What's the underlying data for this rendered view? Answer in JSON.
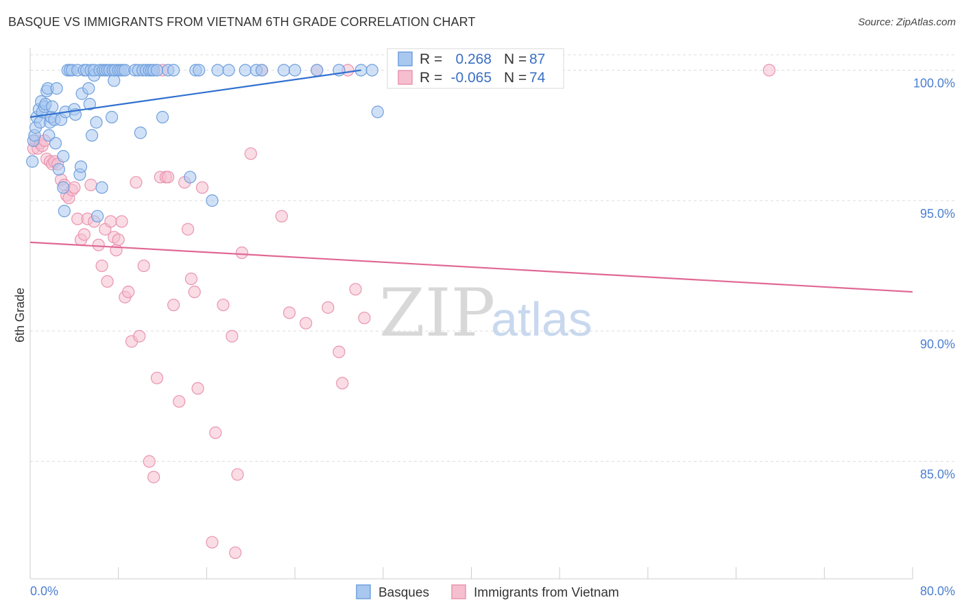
{
  "title": "BASQUE VS IMMIGRANTS FROM VIETNAM 6TH GRADE CORRELATION CHART",
  "source": "Source: ZipAtlas.com",
  "watermark": {
    "zip": "ZIP",
    "atlas": "atlas"
  },
  "colors": {
    "blue_fill": "#a9c8f0",
    "blue_stroke": "#6f9fdc",
    "blue_line": "#2f6fcf",
    "pink_fill": "#f6bfd0",
    "pink_stroke": "#e993b0",
    "pink_line": "#e06894",
    "axis_text": "#4a7fd0",
    "grid": "#dcdcdc"
  },
  "legend_box": {
    "rows": [
      {
        "r_label": "R =",
        "r_value": "0.268",
        "n_label": "N =",
        "n_value": "87",
        "color": "blue"
      },
      {
        "r_label": "R =",
        "r_value": "-0.065",
        "n_label": "N =",
        "n_value": "74",
        "color": "pink"
      }
    ]
  },
  "chart_data": {
    "type": "scatter",
    "title": "BASQUE VS IMMIGRANTS FROM VIETNAM 6TH GRADE CORRELATION CHART",
    "xlabel": "",
    "ylabel": "6th Grade",
    "xlim": [
      0,
      80
    ],
    "ylim": [
      80.5,
      100.8
    ],
    "x_tick_labels": [
      "0.0%",
      "80.0%"
    ],
    "y_ticks": [
      85,
      90,
      95,
      100
    ],
    "y_tick_labels": [
      "85.0%",
      "90.0%",
      "95.0%",
      "100.0%"
    ],
    "grid": "horizontal dashed",
    "legend_position": "bottom-center",
    "series": [
      {
        "name": "Basques",
        "color": "blue",
        "r": 0.268,
        "n": 87,
        "trend": [
          [
            0,
            98.2
          ],
          [
            30,
            100.0
          ]
        ],
        "points": [
          [
            0.2,
            96.5
          ],
          [
            0.3,
            97.3
          ],
          [
            0.4,
            97.5
          ],
          [
            0.5,
            97.8
          ],
          [
            0.6,
            98.2
          ],
          [
            0.8,
            98.5
          ],
          [
            0.9,
            98.0
          ],
          [
            1.0,
            98.8
          ],
          [
            1.1,
            98.4
          ],
          [
            1.3,
            98.6
          ],
          [
            1.4,
            98.7
          ],
          [
            1.5,
            99.2
          ],
          [
            1.6,
            99.3
          ],
          [
            1.7,
            97.5
          ],
          [
            1.8,
            98.0
          ],
          [
            1.9,
            98.2
          ],
          [
            2.0,
            98.6
          ],
          [
            2.2,
            98.1
          ],
          [
            2.3,
            97.2
          ],
          [
            2.4,
            99.3
          ],
          [
            2.6,
            96.2
          ],
          [
            2.8,
            98.1
          ],
          [
            3.0,
            96.7
          ],
          [
            3.0,
            95.5
          ],
          [
            3.1,
            94.6
          ],
          [
            3.2,
            98.4
          ],
          [
            3.4,
            100.0
          ],
          [
            3.6,
            100.0
          ],
          [
            3.8,
            100.0
          ],
          [
            4.0,
            98.5
          ],
          [
            4.1,
            98.3
          ],
          [
            4.3,
            100.0
          ],
          [
            4.5,
            96.0
          ],
          [
            4.6,
            96.3
          ],
          [
            4.7,
            99.1
          ],
          [
            4.9,
            100.0
          ],
          [
            5.1,
            100.0
          ],
          [
            5.3,
            99.3
          ],
          [
            5.4,
            98.7
          ],
          [
            5.5,
            100.0
          ],
          [
            5.6,
            97.5
          ],
          [
            5.8,
            99.8
          ],
          [
            5.8,
            100.0
          ],
          [
            6.0,
            98.0
          ],
          [
            6.1,
            94.4
          ],
          [
            6.3,
            100.0
          ],
          [
            6.5,
            95.5
          ],
          [
            6.6,
            100.0
          ],
          [
            6.8,
            100.0
          ],
          [
            7.0,
            100.0
          ],
          [
            7.2,
            100.0
          ],
          [
            7.4,
            98.2
          ],
          [
            7.5,
            100.0
          ],
          [
            7.6,
            99.6
          ],
          [
            7.7,
            100.0
          ],
          [
            8.0,
            100.0
          ],
          [
            8.2,
            100.0
          ],
          [
            8.4,
            100.0
          ],
          [
            8.6,
            100.0
          ],
          [
            9.5,
            100.0
          ],
          [
            9.8,
            100.0
          ],
          [
            10.0,
            97.6
          ],
          [
            10.2,
            100.0
          ],
          [
            10.5,
            100.0
          ],
          [
            10.8,
            100.0
          ],
          [
            11.0,
            100.0
          ],
          [
            11.2,
            100.0
          ],
          [
            11.5,
            100.0
          ],
          [
            12.0,
            98.2
          ],
          [
            12.5,
            100.0
          ],
          [
            13.0,
            100.0
          ],
          [
            14.5,
            95.9
          ],
          [
            15.0,
            100.0
          ],
          [
            15.3,
            100.0
          ],
          [
            16.5,
            95.0
          ],
          [
            17.0,
            100.0
          ],
          [
            18.0,
            100.0
          ],
          [
            19.5,
            100.0
          ],
          [
            20.5,
            100.0
          ],
          [
            21.0,
            100.0
          ],
          [
            23.0,
            100.0
          ],
          [
            24.0,
            100.0
          ],
          [
            26.0,
            100.0
          ],
          [
            28.0,
            100.0
          ],
          [
            30.0,
            100.0
          ],
          [
            31.0,
            100.0
          ],
          [
            31.5,
            98.4
          ]
        ]
      },
      {
        "name": "Immigrants from Vietnam",
        "color": "pink",
        "r": -0.065,
        "n": 74,
        "trend": [
          [
            0,
            93.4
          ],
          [
            80,
            91.5
          ]
        ],
        "points": [
          [
            0.3,
            97.0
          ],
          [
            0.5,
            97.3
          ],
          [
            0.7,
            97.0
          ],
          [
            0.9,
            97.2
          ],
          [
            1.1,
            97.1
          ],
          [
            1.3,
            97.3
          ],
          [
            1.5,
            96.6
          ],
          [
            1.8,
            96.5
          ],
          [
            2.0,
            96.4
          ],
          [
            2.2,
            96.5
          ],
          [
            2.5,
            96.4
          ],
          [
            2.8,
            95.8
          ],
          [
            3.1,
            95.6
          ],
          [
            3.3,
            95.2
          ],
          [
            3.5,
            95.1
          ],
          [
            3.8,
            95.4
          ],
          [
            4.0,
            95.5
          ],
          [
            4.3,
            94.3
          ],
          [
            4.6,
            93.5
          ],
          [
            4.9,
            93.7
          ],
          [
            5.2,
            94.3
          ],
          [
            5.5,
            95.6
          ],
          [
            5.8,
            94.2
          ],
          [
            6.2,
            93.3
          ],
          [
            6.5,
            92.5
          ],
          [
            6.8,
            93.9
          ],
          [
            7.0,
            91.9
          ],
          [
            7.3,
            94.2
          ],
          [
            7.6,
            93.6
          ],
          [
            7.8,
            93.1
          ],
          [
            8.0,
            93.5
          ],
          [
            8.3,
            94.2
          ],
          [
            8.6,
            91.3
          ],
          [
            8.9,
            91.5
          ],
          [
            9.2,
            89.6
          ],
          [
            9.6,
            95.7
          ],
          [
            9.9,
            89.8
          ],
          [
            10.3,
            92.5
          ],
          [
            10.8,
            85.0
          ],
          [
            11.2,
            84.4
          ],
          [
            11.5,
            88.2
          ],
          [
            11.8,
            95.9
          ],
          [
            12.0,
            100.0
          ],
          [
            12.3,
            95.9
          ],
          [
            12.5,
            95.9
          ],
          [
            13.0,
            91.0
          ],
          [
            13.5,
            87.3
          ],
          [
            14.0,
            95.7
          ],
          [
            14.3,
            93.9
          ],
          [
            14.6,
            92.0
          ],
          [
            14.9,
            91.5
          ],
          [
            15.2,
            87.8
          ],
          [
            15.6,
            95.5
          ],
          [
            16.5,
            81.9
          ],
          [
            16.8,
            86.1
          ],
          [
            17.5,
            91.0
          ],
          [
            18.3,
            89.8
          ],
          [
            18.6,
            81.5
          ],
          [
            18.8,
            84.5
          ],
          [
            19.2,
            93.0
          ],
          [
            20.0,
            96.8
          ],
          [
            21.0,
            100.0
          ],
          [
            22.8,
            94.4
          ],
          [
            23.5,
            90.7
          ],
          [
            25.0,
            90.3
          ],
          [
            26.0,
            100.0
          ],
          [
            27.0,
            90.9
          ],
          [
            28.0,
            89.2
          ],
          [
            28.3,
            88.0
          ],
          [
            28.8,
            100.0
          ],
          [
            29.5,
            91.6
          ],
          [
            30.3,
            90.5
          ],
          [
            33.0,
            100.0
          ],
          [
            67.0,
            100.0
          ]
        ]
      }
    ]
  }
}
